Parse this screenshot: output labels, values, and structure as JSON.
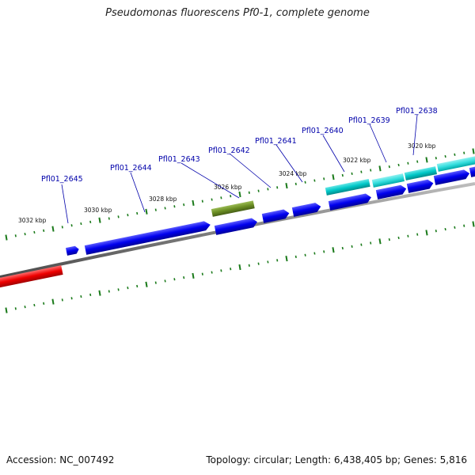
{
  "title": "Pseudomonas fluorescens Pf0-1, complete genome",
  "footer": {
    "accession": "Accession: NC_007492",
    "summary": "Topology: circular; Length: 6,438,405 bp; Genes: 5,816"
  },
  "colors": {
    "backbone": "#808080",
    "tick": "#1a7a1a",
    "forward_gene": "#0000ee",
    "reverse_gene": "#ee0000",
    "feature_cyan": "#00c8c8",
    "feature_olive": "#6b8e23",
    "label": "#0000aa"
  },
  "scale_labels": [
    "3032 kbp",
    "3030 kbp",
    "3028 kbp",
    "3026 kbp",
    "3024 kbp",
    "3022 kbp",
    "3020 kbp"
  ],
  "gene_labels": [
    "Pfl01_2645",
    "Pfl01_2644",
    "Pfl01_2643",
    "Pfl01_2642",
    "Pfl01_2641",
    "Pfl01_2640",
    "Pfl01_2639",
    "Pfl01_2638"
  ]
}
